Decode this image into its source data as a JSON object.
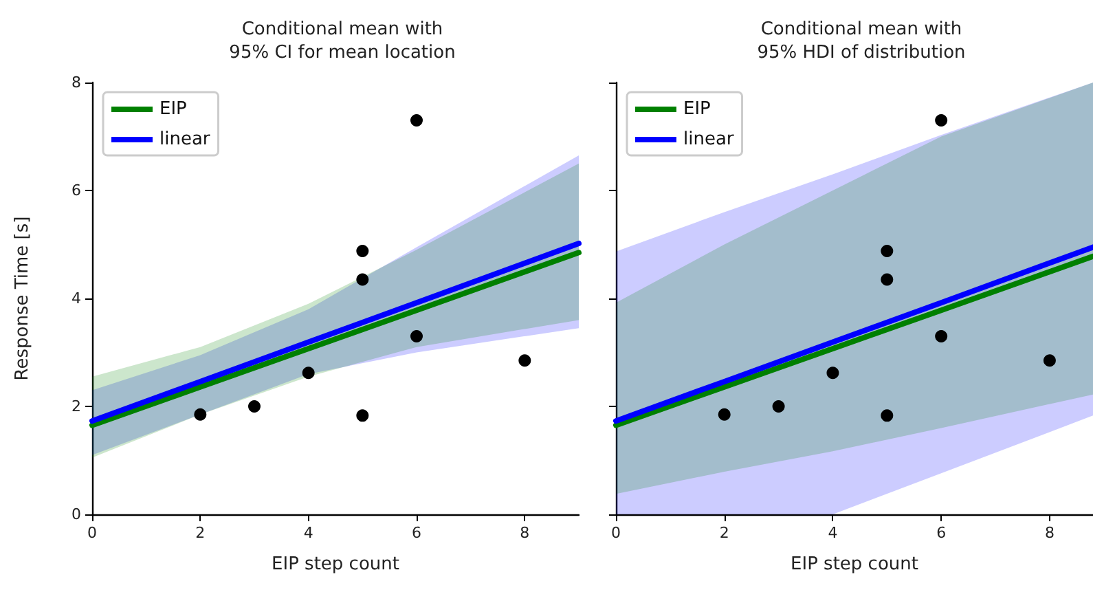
{
  "chart_data": [
    {
      "type": "line",
      "title": "Conditional mean with\n95% CI for mean location",
      "xlabel": "EIP step count",
      "ylabel": "Response Time [s]",
      "xlim": [
        0,
        9
      ],
      "ylim": [
        0,
        8
      ],
      "xticks": [
        0,
        2,
        4,
        6,
        8
      ],
      "yticks": [
        0,
        2,
        4,
        6,
        8
      ],
      "grid": false,
      "legend": "top left",
      "marker": "none",
      "series": [
        {
          "name": "EIP",
          "color": "#008000",
          "x": [
            0,
            2,
            4,
            6,
            9
          ],
          "values": [
            1.65,
            2.36,
            3.07,
            3.78,
            4.85
          ],
          "lower": [
            1.05,
            1.85,
            2.55,
            3.1,
            3.6
          ],
          "upper": [
            2.55,
            3.1,
            3.9,
            4.9,
            6.5
          ]
        },
        {
          "name": "linear",
          "color": "#0000ff",
          "x": [
            0,
            2,
            4,
            6,
            9
          ],
          "values": [
            1.73,
            2.46,
            3.19,
            3.92,
            5.02
          ],
          "lower": [
            1.1,
            1.85,
            2.6,
            3.0,
            3.45
          ],
          "upper": [
            2.3,
            2.95,
            3.8,
            4.95,
            6.65
          ]
        },
        {
          "type": "scatter",
          "marker": "circle",
          "color": "#000000",
          "x": [
            2,
            3,
            4,
            5,
            5,
            5,
            6,
            6,
            7,
            8
          ],
          "values": [
            1.85,
            2.0,
            2.62,
            1.83,
            4.35,
            4.88,
            3.3,
            7.3,
            null,
            2.85
          ]
        }
      ]
    },
    {
      "type": "line",
      "title": "Conditional mean with\n95% HDI of distribution",
      "xlabel": "EIP step count",
      "xlim": [
        0,
        8.8
      ],
      "ylim": [
        0,
        8
      ],
      "xticks": [
        0,
        2,
        4,
        6,
        8
      ],
      "yticks": [
        0,
        2,
        4,
        6,
        8
      ],
      "tick_labels": "x",
      "grid": false,
      "legend": "top left",
      "marker": "none",
      "series": [
        {
          "name": "EIP",
          "color": "#008000",
          "x": [
            0,
            2,
            4,
            6,
            8.8
          ],
          "values": [
            1.65,
            2.36,
            3.07,
            3.78,
            4.78
          ],
          "lower": [
            0.38,
            0.79,
            1.17,
            1.6,
            2.22
          ],
          "upper": [
            3.92,
            5.0,
            6.0,
            7.0,
            8.0
          ]
        },
        {
          "name": "linear",
          "color": "#0000ff",
          "x": [
            0,
            2,
            4,
            6,
            8.8
          ],
          "values": [
            1.73,
            2.46,
            3.19,
            3.92,
            4.95
          ],
          "lower": [
            0,
            0,
            0,
            0.76,
            1.83
          ],
          "upper": [
            4.87,
            5.6,
            6.3,
            7.03,
            8.0
          ]
        },
        {
          "type": "scatter",
          "marker": "circle",
          "color": "#000000",
          "x": [
            2,
            3,
            4,
            5,
            5,
            5,
            6,
            6,
            7,
            8
          ],
          "values": [
            1.85,
            2.0,
            2.62,
            1.83,
            4.35,
            4.88,
            3.3,
            7.3,
            null,
            2.85
          ]
        }
      ]
    }
  ]
}
